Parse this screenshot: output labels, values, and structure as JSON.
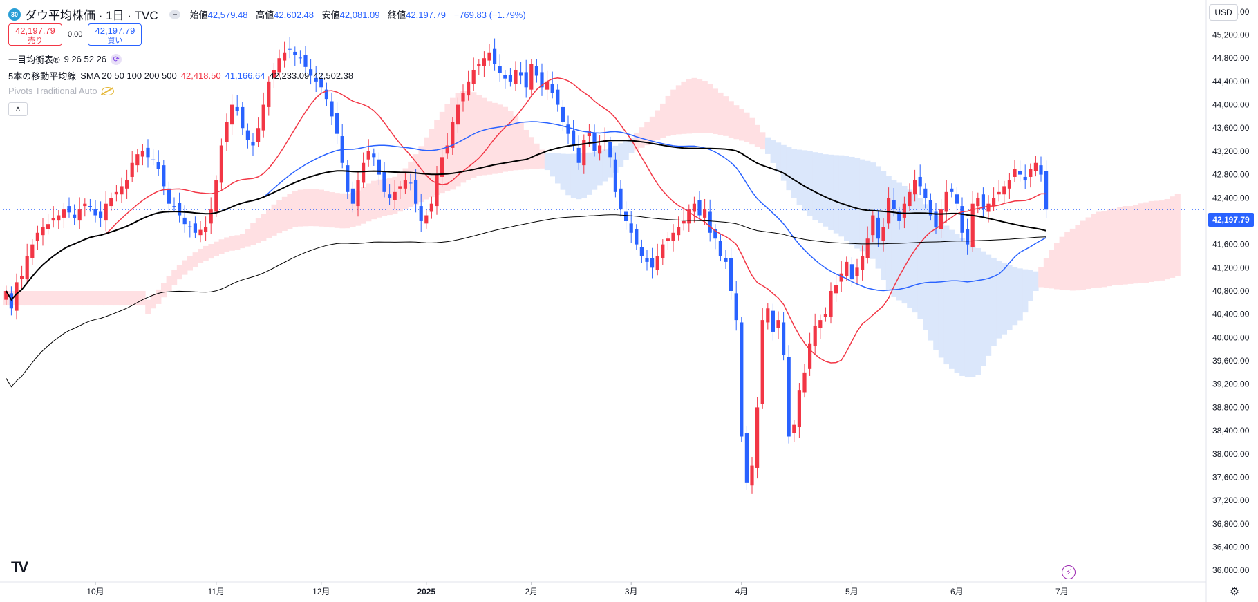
{
  "header": {
    "symbol_badge": "30",
    "title": "ダウ平均株価 · 1日 · TVC",
    "ohlc": [
      {
        "label": "始値",
        "value": "42,579.48"
      },
      {
        "label": "高値",
        "value": "42,602.48"
      },
      {
        "label": "安値",
        "value": "42,081.09"
      },
      {
        "label": "終値",
        "value": "42,197.79"
      }
    ],
    "change": "−769.83 (−1.79%)"
  },
  "trade": {
    "sell_price": "42,197.79",
    "sell_label": "売り",
    "spread": "0.00",
    "buy_price": "42,197.79",
    "buy_label": "買い"
  },
  "indicators": {
    "ichimoku_name": "一目均衡表®",
    "ichimoku_params": "9 26 52 26",
    "ma_name": "5本の移動平均線",
    "ma_type": "SMA 20 50 100 200 500",
    "ma_values": [
      "42,418.50",
      "41,166.64",
      "42,233.09",
      "42,502.38"
    ],
    "pivots": "Pivots Traditional Auto"
  },
  "toolbar": {
    "currency": "USD",
    "collapse_glyph": "˄",
    "bolt_glyph": "⚡",
    "gear_glyph": "⚙",
    "logo_text": "TV"
  },
  "colors": {
    "up": "#f23645",
    "down": "#2962ff",
    "sma20": "#f23645",
    "sma50": "#2962ff",
    "sma100": "#000000",
    "sma200": "#000000",
    "cloud_bull": "#ffe0e3",
    "cloud_bear": "#dbe7fb",
    "price_line": "#2962ff"
  },
  "chart_data": {
    "type": "candlestick",
    "title": "ダウ平均株価",
    "current_price": 42197.79,
    "current_price_label": "42,197.79",
    "ylim": [
      35800,
      45800
    ],
    "y_ticks": [
      "45,600.00",
      "45,200.00",
      "44,800.00",
      "44,400.00",
      "44,000.00",
      "43,600.00",
      "43,200.00",
      "42,800.00",
      "42,400.00",
      "42,000.00",
      "41,600.00",
      "41,200.00",
      "40,800.00",
      "40,400.00",
      "40,000.00",
      "39,600.00",
      "39,200.00",
      "38,800.00",
      "38,400.00",
      "38,000.00",
      "37,600.00",
      "37,200.00",
      "36,800.00",
      "36,400.00",
      "36,000.00"
    ],
    "y_tick_values": [
      45600,
      45200,
      44800,
      44400,
      44000,
      43600,
      43200,
      42800,
      42400,
      42000,
      41600,
      41200,
      40800,
      40400,
      40000,
      39600,
      39200,
      38800,
      38400,
      38000,
      37600,
      37200,
      36800,
      36400,
      36000
    ],
    "x_labels": [
      {
        "label": "10月",
        "bar": 17
      },
      {
        "label": "11月",
        "bar": 40
      },
      {
        "label": "12月",
        "bar": 60
      },
      {
        "label": "2025",
        "bar": 80
      },
      {
        "label": "2月",
        "bar": 100
      },
      {
        "label": "3月",
        "bar": 119
      },
      {
        "label": "4月",
        "bar": 140
      },
      {
        "label": "5月",
        "bar": 161
      },
      {
        "label": "6月",
        "bar": 181
      },
      {
        "label": "7月",
        "bar": 201
      }
    ],
    "bar_count_visible": 216,
    "closes": [
      40800,
      40500,
      40950,
      41050,
      41400,
      41600,
      41800,
      41900,
      41950,
      42050,
      42100,
      42200,
      42150,
      42050,
      42200,
      42300,
      42250,
      42100,
      42050,
      42300,
      42400,
      42500,
      42600,
      42700,
      43000,
      43150,
      43200,
      43100,
      43050,
      42900,
      42600,
      42300,
      42250,
      42100,
      41950,
      41900,
      41800,
      41850,
      41900,
      42200,
      42700,
      43300,
      43700,
      44000,
      43900,
      43600,
      43400,
      43300,
      43600,
      44000,
      44400,
      44600,
      44800,
      44900,
      44950,
      44850,
      44800,
      44650,
      44500,
      44400,
      44300,
      44100,
      43800,
      43500,
      43000,
      42500,
      42300,
      42700,
      43000,
      43200,
      43100,
      42800,
      42500,
      42400,
      42500,
      42600,
      42700,
      42650,
      42300,
      42000,
      42100,
      42300,
      42800,
      43100,
      43300,
      43700,
      44000,
      44200,
      44400,
      44600,
      44700,
      44800,
      44900,
      44700,
      44550,
      44450,
      44400,
      44600,
      44500,
      44300,
      44700,
      44500,
      44300,
      44400,
      44200,
      44000,
      43700,
      43500,
      43300,
      43000,
      43400,
      43550,
      43200,
      43300,
      43400,
      43100,
      42500,
      42200,
      42000,
      41800,
      41600,
      41400,
      41300,
      41200,
      41400,
      41600,
      41700,
      41800,
      41900,
      42000,
      42200,
      42300,
      42100,
      42200,
      41800,
      41700,
      41400,
      41300,
      40800,
      40300,
      38300,
      37500,
      37800,
      38800,
      40300,
      40500,
      40100,
      40300,
      39700,
      38300,
      38500,
      39100,
      39400,
      39900,
      40200,
      40300,
      40400,
      40800,
      40900,
      41100,
      41300,
      41000,
      41200,
      41400,
      41700,
      42100,
      41700,
      41900,
      42400,
      42200,
      42000,
      42300,
      42500,
      42700,
      42600,
      42400,
      42100,
      41900,
      42200,
      42500,
      42500,
      42300,
      41800,
      41600,
      42300,
      42400,
      42200,
      42300,
      42400,
      42500,
      42600,
      42700,
      42900,
      42800,
      42700,
      42900,
      43000,
      42800,
      42197.79
    ]
  }
}
